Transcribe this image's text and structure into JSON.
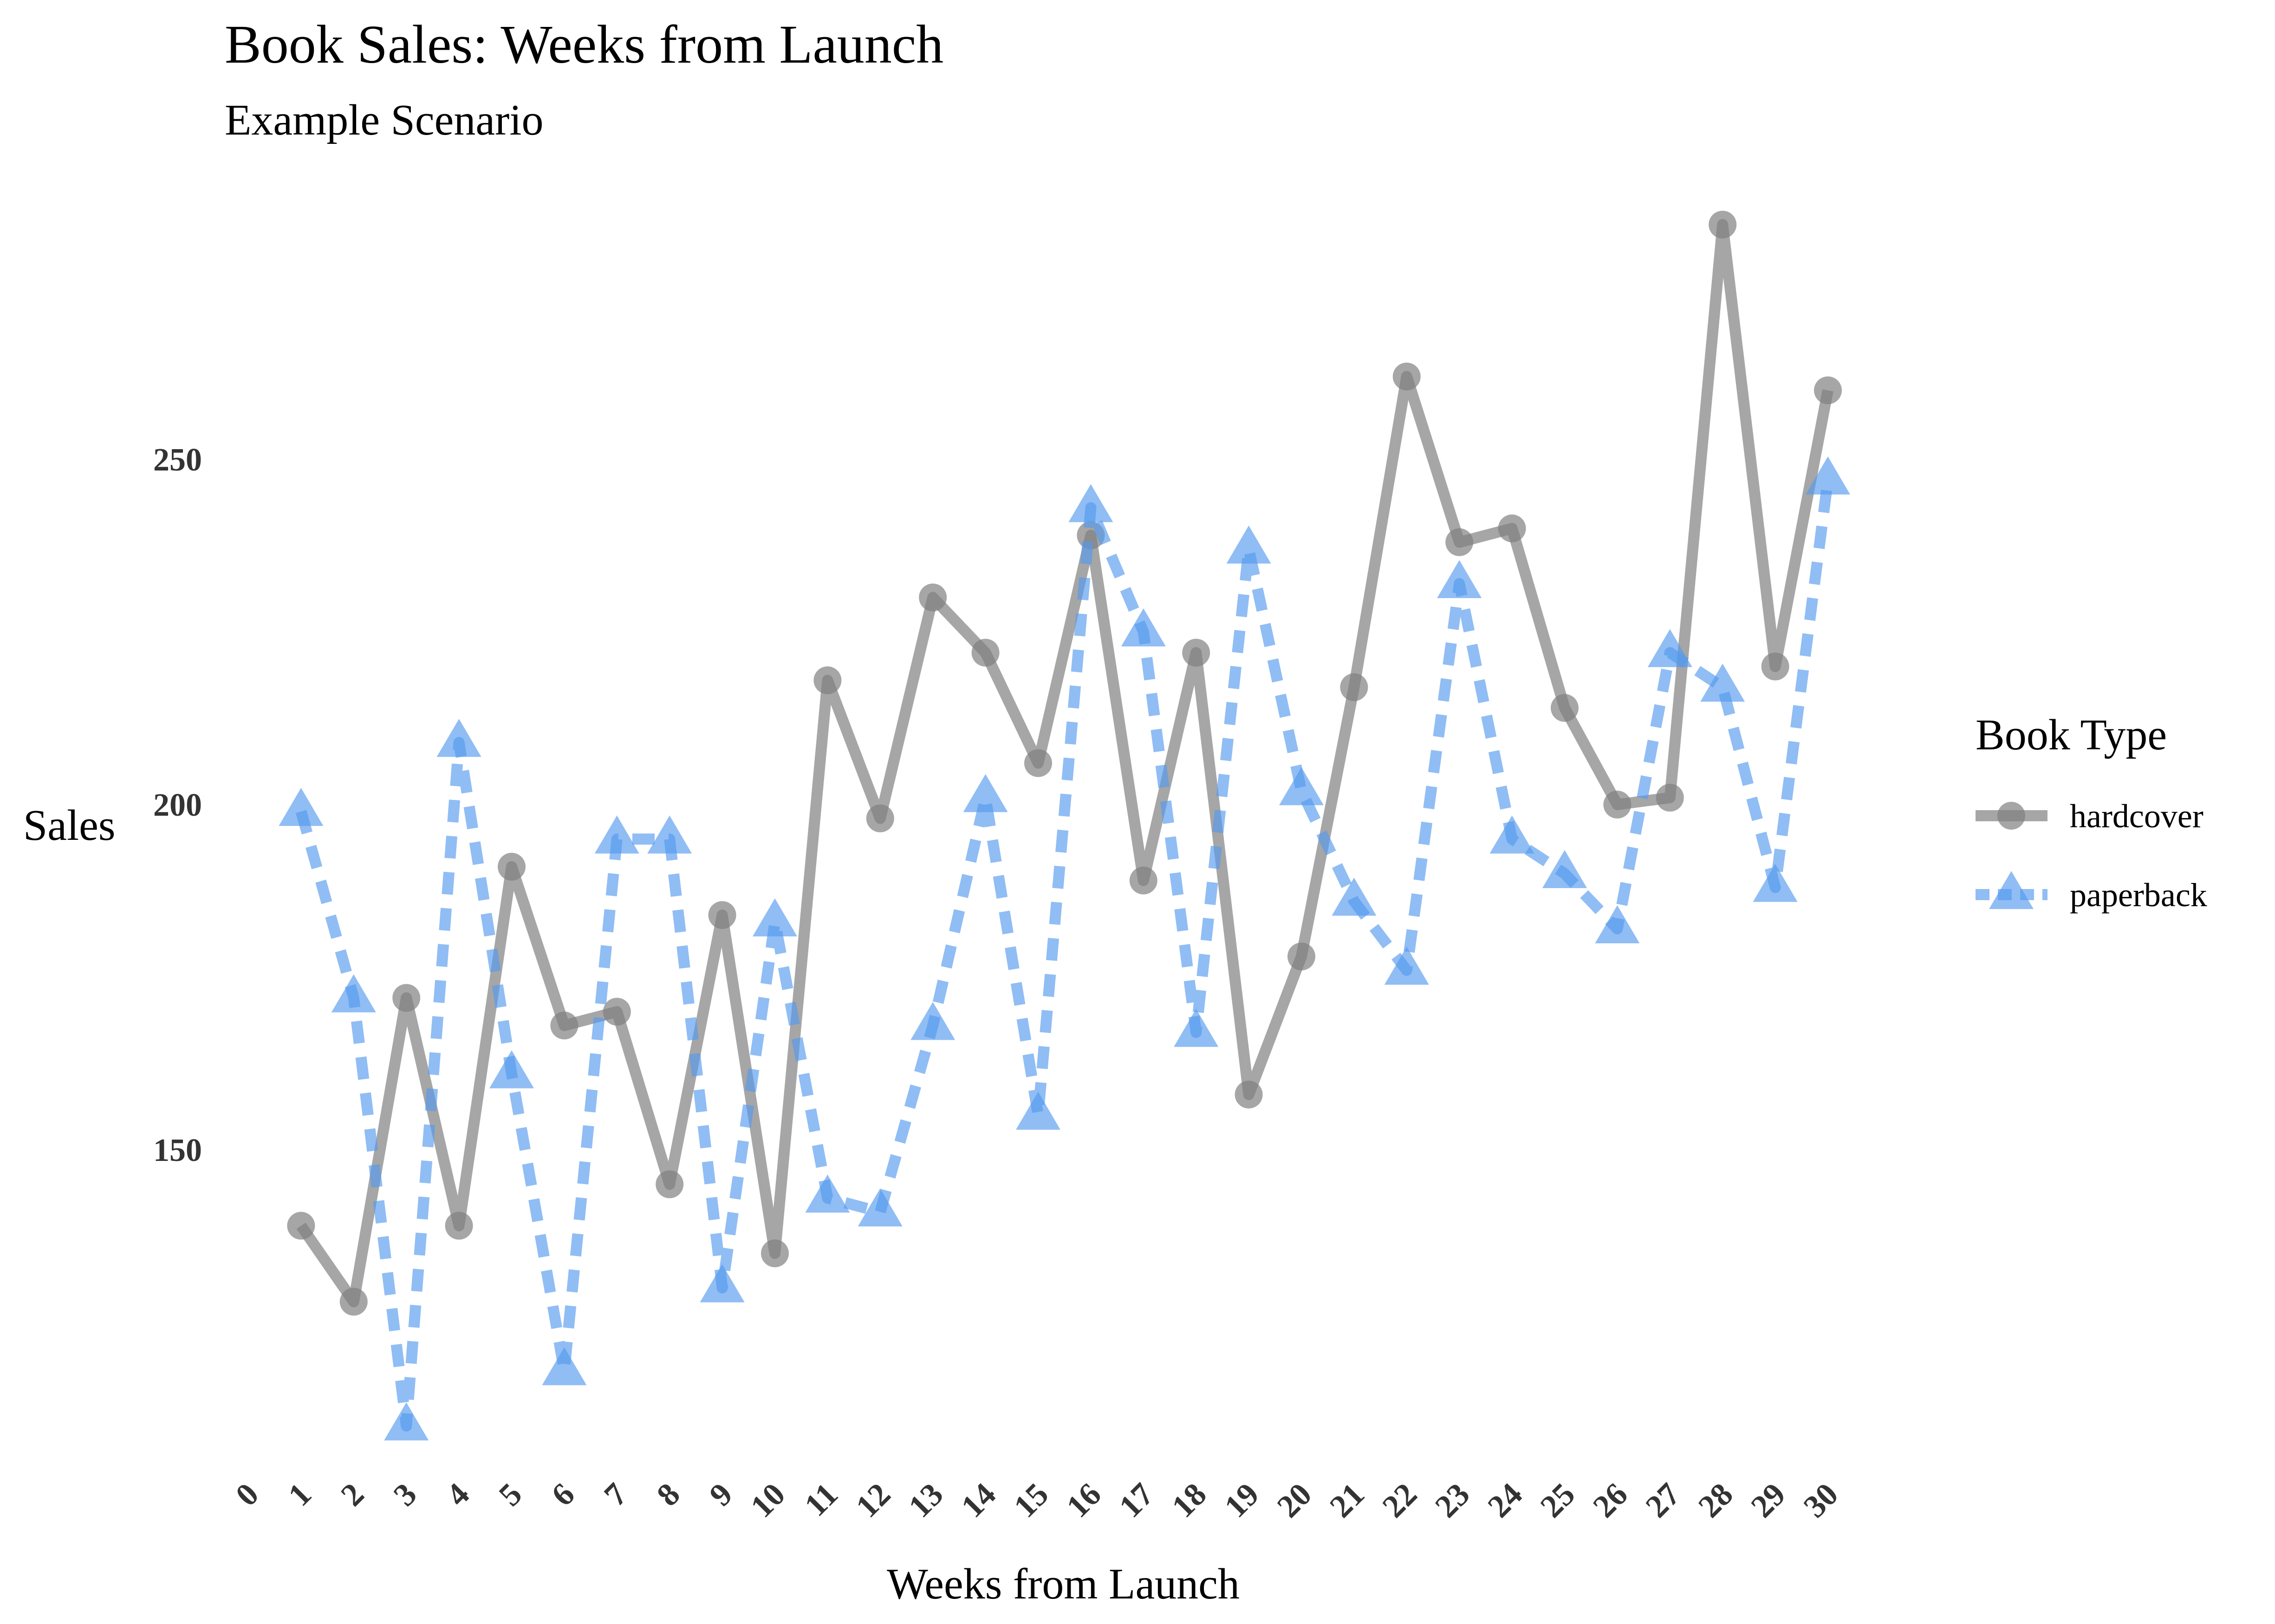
{
  "colors": {
    "hardcover": "#808080",
    "paperback": "#5599ee"
  },
  "chart_data": {
    "type": "line",
    "title": "Book Sales: Weeks from Launch",
    "subtitle": "Example Scenario",
    "xlabel": "Weeks from Launch",
    "ylabel": "Sales",
    "xlim": [
      0,
      30
    ],
    "ylim": [
      100,
      290
    ],
    "x_ticks": [
      0,
      1,
      2,
      3,
      4,
      5,
      6,
      7,
      8,
      9,
      10,
      11,
      12,
      13,
      14,
      15,
      16,
      17,
      18,
      19,
      20,
      21,
      22,
      23,
      24,
      25,
      26,
      27,
      28,
      29,
      30
    ],
    "y_ticks": [
      150,
      200,
      250
    ],
    "grid": false,
    "legend": {
      "title": "Book Type",
      "position": "right"
    },
    "x": [
      1,
      2,
      3,
      4,
      5,
      6,
      7,
      8,
      9,
      10,
      11,
      12,
      13,
      14,
      15,
      16,
      17,
      18,
      19,
      20,
      21,
      22,
      23,
      24,
      25,
      26,
      27,
      28,
      29,
      30
    ],
    "series": [
      {
        "name": "hardcover",
        "marker": "circle",
        "line_style": "solid",
        "values": [
          139,
          128,
          172,
          139,
          191,
          168,
          170,
          145,
          184,
          135,
          218,
          198,
          230,
          222,
          206,
          239,
          189,
          222,
          158,
          178,
          217,
          262,
          238,
          240,
          214,
          200,
          201,
          284,
          220,
          260
        ]
      },
      {
        "name": "paperback",
        "marker": "triangle",
        "line_style": "dashed",
        "values": [
          199,
          172,
          110,
          209,
          161,
          118,
          195,
          195,
          130,
          183,
          143,
          141,
          168,
          201,
          155,
          243,
          225,
          167,
          237,
          202,
          186,
          176,
          232,
          195,
          190,
          182,
          222,
          217,
          188,
          247
        ]
      }
    ]
  }
}
